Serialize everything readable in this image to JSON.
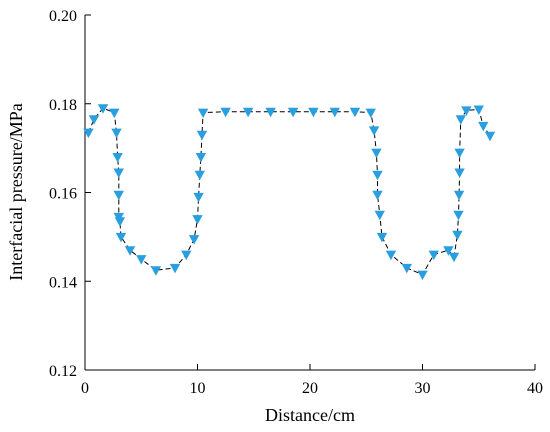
{
  "chart_data": {
    "type": "line",
    "xlabel": "Distance/cm",
    "ylabel": "Interfacial pressure/MPa",
    "xlim": [
      0,
      40
    ],
    "ylim": [
      0.12,
      0.2
    ],
    "xticks": [
      0,
      10,
      20,
      30,
      40
    ],
    "yticks": [
      0.12,
      0.14,
      0.16,
      0.18,
      0.2
    ],
    "xtick_labels": [
      "0",
      "10",
      "20",
      "30",
      "40"
    ],
    "ytick_labels": [
      "0.12",
      "0.14",
      "0.16",
      "0.18",
      "0.20"
    ],
    "grid": false,
    "marker": "triangle-down",
    "marker_color": "#2a9fe0",
    "line_style": "dashed",
    "line_color": "#000000",
    "series": [
      {
        "x": [
          0.3,
          0.8,
          1.6,
          2.6,
          2.8,
          2.9,
          3.0,
          3.0,
          3.0,
          3.1,
          3.2,
          4.0,
          5.0,
          6.3,
          8.0,
          9.0,
          9.7,
          10.0,
          10.1,
          10.2,
          10.3,
          10.4,
          10.5,
          12.5,
          14.5,
          16.5,
          18.5,
          20.3,
          22.2,
          24.0,
          25.4,
          25.7,
          25.9,
          26.0,
          26.0,
          26.2,
          26.4,
          27.2,
          28.6,
          30.0,
          31.0,
          32.3,
          32.8,
          33.1,
          33.2,
          33.25,
          33.3,
          33.3,
          33.4,
          33.9,
          35.0,
          35.4,
          36.0
        ],
        "y": [
          0.1735,
          0.1765,
          0.179,
          0.178,
          0.1735,
          0.168,
          0.1645,
          0.1595,
          0.1545,
          0.1535,
          0.15,
          0.147,
          0.145,
          0.1425,
          0.143,
          0.146,
          0.1495,
          0.154,
          0.159,
          0.164,
          0.168,
          0.173,
          0.178,
          0.1782,
          0.1782,
          0.1782,
          0.1782,
          0.1782,
          0.1782,
          0.1782,
          0.178,
          0.174,
          0.169,
          0.164,
          0.1595,
          0.155,
          0.15,
          0.146,
          0.143,
          0.1415,
          0.146,
          0.147,
          0.1455,
          0.1505,
          0.155,
          0.1595,
          0.1645,
          0.169,
          0.1765,
          0.1785,
          0.1787,
          0.175,
          0.1728
        ]
      }
    ]
  }
}
